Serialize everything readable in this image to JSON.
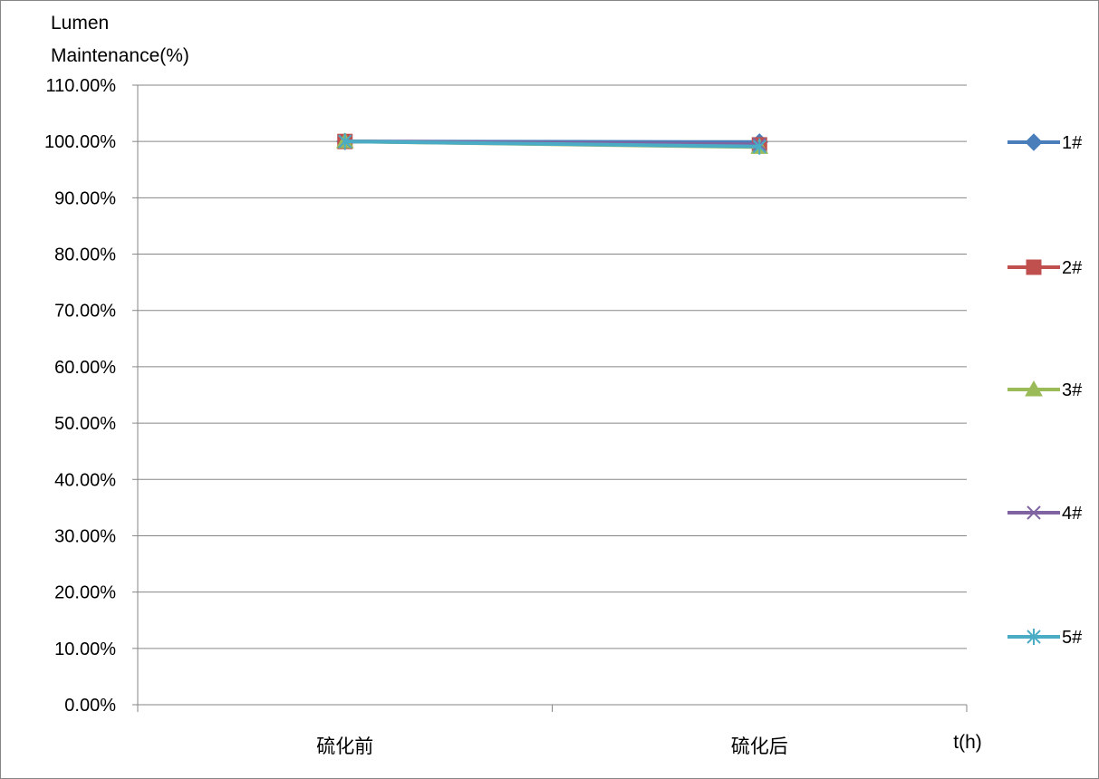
{
  "chart_data": {
    "type": "line",
    "ylabel_lines": [
      "Lumen",
      "Maintenance(%)"
    ],
    "xlabel": "t(h)",
    "categories": [
      "硫化前",
      "硫化后"
    ],
    "ylim": [
      0,
      1.1
    ],
    "y_ticks": [
      0,
      0.1,
      0.2,
      0.3,
      0.4,
      0.5,
      0.6,
      0.7,
      0.8,
      0.9,
      1.0,
      1.1
    ],
    "y_tick_labels": [
      "0.00%",
      "10.00%",
      "20.00%",
      "30.00%",
      "40.00%",
      "50.00%",
      "60.00%",
      "70.00%",
      "80.00%",
      "90.00%",
      "100.00%",
      "110.00%"
    ],
    "grid": true,
    "legend_position": "right",
    "series": [
      {
        "name": "1#",
        "values": [
          1.0,
          0.999
        ],
        "color": "#4a7ebb",
        "marker": "diamond"
      },
      {
        "name": "2#",
        "values": [
          1.0,
          0.994
        ],
        "color": "#c0504d",
        "marker": "square"
      },
      {
        "name": "3#",
        "values": [
          1.0,
          0.99
        ],
        "color": "#9bbb59",
        "marker": "triangle"
      },
      {
        "name": "4#",
        "values": [
          1.0,
          0.995
        ],
        "color": "#8064a2",
        "marker": "x"
      },
      {
        "name": "5#",
        "values": [
          1.0,
          0.991
        ],
        "color": "#4bacc6",
        "marker": "star"
      }
    ]
  }
}
